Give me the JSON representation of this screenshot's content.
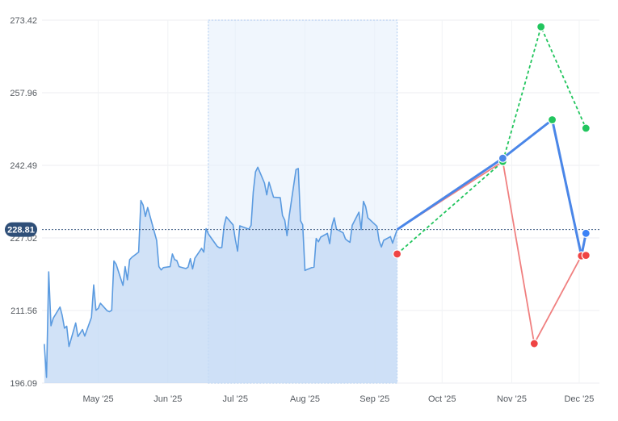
{
  "chart_data": {
    "type": "line",
    "title": "",
    "xlabel": "",
    "ylabel": "",
    "ylim": [
      196.09,
      273.42
    ],
    "y_ticks": [
      "273.42",
      "257.96",
      "242.49",
      "227.02",
      "211.56",
      "196.09"
    ],
    "x_ticks": [
      {
        "label": "May '25",
        "date": "2025-05-01"
      },
      {
        "label": "Jun '25",
        "date": "2025-06-01"
      },
      {
        "label": "Jul '25",
        "date": "2025-07-01"
      },
      {
        "label": "Aug '25",
        "date": "2025-08-01"
      },
      {
        "label": "Sep '25",
        "date": "2025-09-01"
      },
      {
        "label": "Oct '25",
        "date": "2025-10-01"
      },
      {
        "label": "Nov '25",
        "date": "2025-11-01"
      },
      {
        "label": "Dec '25",
        "date": "2025-12-01"
      }
    ],
    "x_range": [
      "2025-04-06",
      "2025-12-10"
    ],
    "current_price": "228.81",
    "highlight_range": [
      "2025-06-19",
      "2025-09-11"
    ],
    "price_series": {
      "name": "",
      "color": "#5b9be0",
      "fill": "#c5dbf5",
      "points": [
        [
          "2025-04-07",
          204.4
        ],
        [
          "2025-04-08",
          197.3
        ],
        [
          "2025-04-09",
          219.8
        ],
        [
          "2025-04-10",
          208.3
        ],
        [
          "2025-04-11",
          209.9
        ],
        [
          "2025-04-14",
          212.3
        ],
        [
          "2025-04-15",
          210.5
        ],
        [
          "2025-04-16",
          207.8
        ],
        [
          "2025-04-17",
          208.2
        ],
        [
          "2025-04-18",
          203.9
        ],
        [
          "2025-04-21",
          208.9
        ],
        [
          "2025-04-22",
          206.0
        ],
        [
          "2025-04-24",
          207.5
        ],
        [
          "2025-04-25",
          206.1
        ],
        [
          "2025-04-28",
          210.1
        ],
        [
          "2025-04-29",
          217.0
        ],
        [
          "2025-04-30",
          211.6
        ],
        [
          "2025-05-01",
          212.0
        ],
        [
          "2025-05-02",
          213.1
        ],
        [
          "2025-05-05",
          211.5
        ],
        [
          "2025-05-06",
          211.3
        ],
        [
          "2025-05-07",
          211.6
        ],
        [
          "2025-05-08",
          222.1
        ],
        [
          "2025-05-09",
          221.4
        ],
        [
          "2025-05-12",
          216.9
        ],
        [
          "2025-05-13",
          220.9
        ],
        [
          "2025-05-14",
          218.1
        ],
        [
          "2025-05-15",
          222.4
        ],
        [
          "2025-05-16",
          222.9
        ],
        [
          "2025-05-19",
          224.0
        ],
        [
          "2025-05-20",
          235.0
        ],
        [
          "2025-05-21",
          234.0
        ],
        [
          "2025-05-22",
          231.6
        ],
        [
          "2025-05-23",
          233.5
        ],
        [
          "2025-05-27",
          226.5
        ],
        [
          "2025-05-28",
          220.9
        ],
        [
          "2025-05-29",
          220.2
        ],
        [
          "2025-05-30",
          220.7
        ],
        [
          "2025-06-02",
          220.9
        ],
        [
          "2025-06-03",
          223.6
        ],
        [
          "2025-06-04",
          222.4
        ],
        [
          "2025-06-05",
          222.2
        ],
        [
          "2025-06-06",
          220.9
        ],
        [
          "2025-06-09",
          220.5
        ],
        [
          "2025-06-10",
          220.8
        ],
        [
          "2025-06-11",
          222.6
        ],
        [
          "2025-06-12",
          220.4
        ],
        [
          "2025-06-13",
          222.7
        ],
        [
          "2025-06-16",
          224.8
        ],
        [
          "2025-06-17",
          224.0
        ],
        [
          "2025-06-18",
          229.0
        ],
        [
          "2025-06-19",
          227.9
        ],
        [
          "2025-06-20",
          227.2
        ],
        [
          "2025-06-23",
          225.2
        ],
        [
          "2025-06-24",
          224.9
        ],
        [
          "2025-06-25",
          225.0
        ],
        [
          "2025-06-26",
          229.6
        ],
        [
          "2025-06-27",
          231.5
        ],
        [
          "2025-06-30",
          229.8
        ],
        [
          "2025-07-01",
          226.7
        ],
        [
          "2025-07-02",
          224.2
        ],
        [
          "2025-07-03",
          229.6
        ],
        [
          "2025-07-07",
          228.9
        ],
        [
          "2025-07-08",
          229.7
        ],
        [
          "2025-07-09",
          236.8
        ],
        [
          "2025-07-10",
          241.1
        ],
        [
          "2025-07-11",
          242.1
        ],
        [
          "2025-07-14",
          238.7
        ],
        [
          "2025-07-15",
          236.2
        ],
        [
          "2025-07-16",
          238.9
        ],
        [
          "2025-07-17",
          237.3
        ],
        [
          "2025-07-18",
          235.7
        ],
        [
          "2025-07-21",
          235.6
        ],
        [
          "2025-07-22",
          231.8
        ],
        [
          "2025-07-23",
          230.8
        ],
        [
          "2025-07-24",
          227.5
        ],
        [
          "2025-07-25",
          231.7
        ],
        [
          "2025-07-28",
          241.6
        ],
        [
          "2025-07-29",
          241.8
        ],
        [
          "2025-07-30",
          230.7
        ],
        [
          "2025-07-31",
          229.8
        ],
        [
          "2025-08-01",
          220.1
        ],
        [
          "2025-08-04",
          220.7
        ],
        [
          "2025-08-05",
          220.8
        ],
        [
          "2025-08-06",
          226.9
        ],
        [
          "2025-08-07",
          226.2
        ],
        [
          "2025-08-08",
          227.2
        ],
        [
          "2025-08-11",
          228.0
        ],
        [
          "2025-08-12",
          225.8
        ],
        [
          "2025-08-13",
          229.6
        ],
        [
          "2025-08-14",
          231.3
        ],
        [
          "2025-08-15",
          228.9
        ],
        [
          "2025-08-18",
          228.1
        ],
        [
          "2025-08-19",
          226.8
        ],
        [
          "2025-08-20",
          226.4
        ],
        [
          "2025-08-21",
          226.1
        ],
        [
          "2025-08-22",
          229.7
        ],
        [
          "2025-08-25",
          232.5
        ],
        [
          "2025-08-26",
          228.8
        ],
        [
          "2025-08-27",
          234.8
        ],
        [
          "2025-08-28",
          233.7
        ],
        [
          "2025-08-29",
          231.3
        ],
        [
          "2025-09-02",
          229.5
        ],
        [
          "2025-09-03",
          226.4
        ],
        [
          "2025-09-04",
          225.1
        ],
        [
          "2025-09-05",
          226.5
        ],
        [
          "2025-09-08",
          227.3
        ],
        [
          "2025-09-09",
          225.9
        ],
        [
          "2025-09-10",
          227.4
        ],
        [
          "2025-09-11",
          228.8
        ]
      ]
    },
    "forecast_series": [
      {
        "name": "",
        "color": "#4a86e8",
        "style": "solid",
        "width": 3,
        "points": [
          [
            "2025-09-11",
            228.81
          ],
          [
            "2025-10-28",
            244.0
          ],
          [
            "2025-11-19",
            252.2
          ],
          [
            "2025-12-02",
            223.2
          ],
          [
            "2025-12-04",
            228.0
          ]
        ],
        "marker_points": [
          1,
          2,
          4
        ],
        "marker_colors": [
          "#4a86e8",
          "#22c55e",
          "#3b82f6"
        ]
      },
      {
        "name": "",
        "color": "#22c55e",
        "style": "dashed",
        "width": 1.8,
        "points": [
          [
            "2025-09-11",
            223.6
          ],
          [
            "2025-10-28",
            243.3
          ],
          [
            "2025-11-14",
            272.0
          ],
          [
            "2025-12-04",
            250.4
          ]
        ],
        "marker_points": [
          0,
          2,
          3
        ],
        "marker_colors": [
          "#ef4444",
          "#22c55e",
          "#22c55e"
        ]
      },
      {
        "name": "",
        "color": "#f08080",
        "style": "solid",
        "width": 1.8,
        "points": [
          [
            "2025-09-11",
            228.81
          ],
          [
            "2025-10-28",
            243.3
          ],
          [
            "2025-11-11",
            204.5
          ],
          [
            "2025-12-02",
            223.2
          ],
          [
            "2025-12-04",
            223.3
          ]
        ],
        "marker_points": [
          1,
          2,
          3,
          4
        ],
        "marker_colors": [
          "#22c55e",
          "#ef4444",
          "#ef4444",
          "#ef4444"
        ]
      }
    ],
    "grid": true
  }
}
